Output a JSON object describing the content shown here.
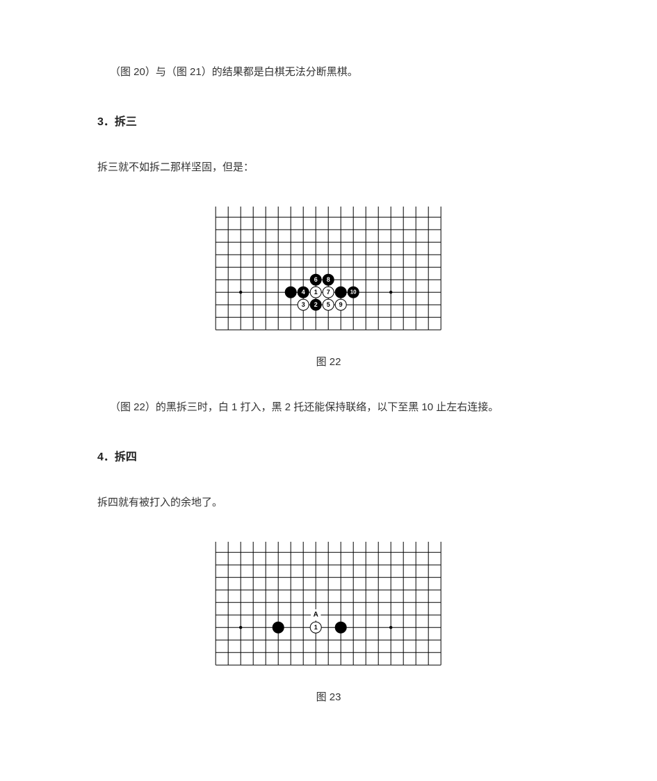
{
  "text": {
    "para1": "（图 20）与（图 21）的结果都是白棋无法分断黑棋。",
    "heading3": "3．拆三",
    "para2": "拆三就不如拆二那样坚固，但是：",
    "caption22": "图 22",
    "para3": "（图 22）的黑拆三时，白 1 打入，黑 2 托还能保持联络，以下至黑 10 止左右连接。",
    "heading4": "4．拆四",
    "para4": "拆四就有被打入的余地了。",
    "caption23": "图 23"
  },
  "style": {
    "text_color": "#333333",
    "heading_color": "#222222",
    "background": "#ffffff",
    "board_line": "#000000",
    "board_line_width": 1,
    "black_stone_fill": "#000000",
    "white_stone_fill": "#ffffff",
    "stone_stroke": "#000000",
    "stone_stroke_width": 1,
    "label_white_text": "#ffffff",
    "label_black_text": "#000000",
    "cell": 18,
    "stone_radius": 8,
    "label_fontsize": 9,
    "star_radius": 2.2
  },
  "board22": {
    "cols": 18,
    "rows": 9,
    "stars": [
      {
        "col": 2,
        "row": 6
      },
      {
        "col": 8,
        "row": 6
      },
      {
        "col": 14,
        "row": 6
      }
    ],
    "stones": [
      {
        "col": 6,
        "row": 6,
        "c": "b",
        "label": ""
      },
      {
        "col": 8,
        "row": 5,
        "c": "b",
        "label": "6"
      },
      {
        "col": 9,
        "row": 5,
        "c": "b",
        "label": "8"
      },
      {
        "col": 7,
        "row": 6,
        "c": "b",
        "label": "4"
      },
      {
        "col": 8,
        "row": 6,
        "c": "w",
        "label": "1"
      },
      {
        "col": 9,
        "row": 6,
        "c": "w",
        "label": "7"
      },
      {
        "col": 10,
        "row": 6,
        "c": "b",
        "label": ""
      },
      {
        "col": 11,
        "row": 6,
        "c": "b",
        "label": "10"
      },
      {
        "col": 7,
        "row": 7,
        "c": "w",
        "label": "3"
      },
      {
        "col": 8,
        "row": 7,
        "c": "b",
        "label": "2"
      },
      {
        "col": 9,
        "row": 7,
        "c": "w",
        "label": "5"
      },
      {
        "col": 10,
        "row": 7,
        "c": "w",
        "label": "9"
      }
    ]
  },
  "board23": {
    "cols": 18,
    "rows": 9,
    "stars": [
      {
        "col": 2,
        "row": 6
      },
      {
        "col": 8,
        "row": 6
      },
      {
        "col": 14,
        "row": 6
      }
    ],
    "marks": [
      {
        "col": 8,
        "row": 5,
        "text": "A"
      }
    ],
    "stones": [
      {
        "col": 5,
        "row": 6,
        "c": "b",
        "label": ""
      },
      {
        "col": 8,
        "row": 6,
        "c": "w",
        "label": "1"
      },
      {
        "col": 10,
        "row": 6,
        "c": "b",
        "label": ""
      }
    ]
  }
}
